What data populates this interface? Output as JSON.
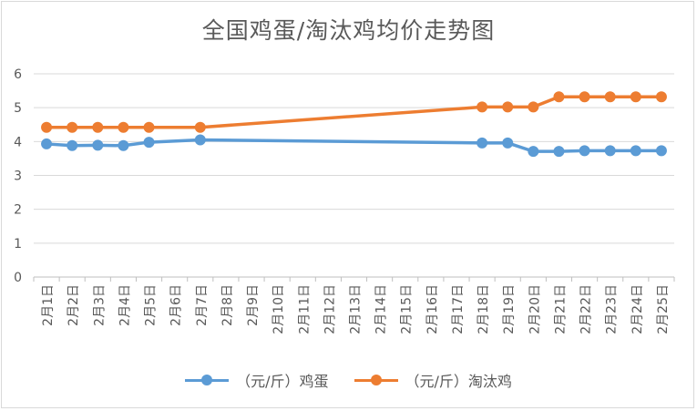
{
  "chart_data": {
    "type": "line",
    "title": "全国鸡蛋/淘汰鸡均价走势图",
    "xlabel": "",
    "ylabel": "",
    "ylim": [
      0,
      6
    ],
    "yticks": [
      0,
      1,
      2,
      3,
      4,
      5,
      6
    ],
    "grid": true,
    "legend_position": "bottom",
    "categories": [
      "2月1日",
      "2月2日",
      "2月3日",
      "2月4日",
      "2月5日",
      "2月6日",
      "2月7日",
      "2月8日",
      "2月9日",
      "2月10日",
      "2月11日",
      "2月12日",
      "2月13日",
      "2月14日",
      "2月15日",
      "2月16日",
      "2月17日",
      "2月18日",
      "2月19日",
      "2月20日",
      "2月21日",
      "2月22日",
      "2月23日",
      "2月24日",
      "2月25日"
    ],
    "series": [
      {
        "name": "（元/斤）鸡蛋",
        "color": "#5b9bd5",
        "values": [
          3.93,
          3.88,
          3.89,
          3.88,
          3.98,
          null,
          4.05,
          null,
          null,
          null,
          null,
          null,
          null,
          null,
          null,
          null,
          null,
          3.96,
          3.96,
          3.71,
          3.71,
          3.73,
          3.73,
          3.73,
          3.73
        ]
      },
      {
        "name": "（元/斤）淘汰鸡",
        "color": "#ed7d31",
        "values": [
          4.42,
          4.42,
          4.42,
          4.42,
          4.42,
          null,
          4.42,
          null,
          null,
          null,
          null,
          null,
          null,
          null,
          null,
          null,
          null,
          5.02,
          5.02,
          5.02,
          5.32,
          5.32,
          5.32,
          5.32,
          5.32
        ]
      }
    ]
  }
}
